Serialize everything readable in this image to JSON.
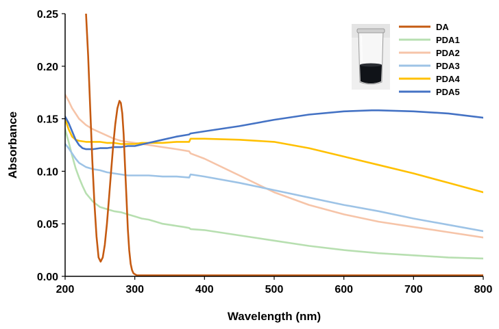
{
  "chart_data": {
    "type": "line",
    "title": "",
    "xlabel": "Wavelength (nm)",
    "ylabel": "Absorbance",
    "xlim": [
      200,
      800
    ],
    "ylim": [
      0,
      0.25
    ],
    "x_ticks": [
      200,
      300,
      400,
      500,
      600,
      700,
      800
    ],
    "x_tick_labels": [
      "200",
      "300",
      "400",
      "500",
      "600",
      "700",
      "800"
    ],
    "y_ticks": [
      0,
      0.05,
      0.1,
      0.15,
      0.2,
      0.25
    ],
    "y_tick_labels": [
      "0.00",
      "0.05",
      "0.10",
      "0.15",
      "0.20",
      "0.25"
    ],
    "grid": false,
    "legend_position": "top-right",
    "inset": "photo of a glass vial containing dark solution",
    "series": [
      {
        "name": "DA",
        "color": "#c55a11",
        "x": [
          230,
          233,
          236,
          239,
          242,
          245,
          248,
          251,
          254,
          257,
          260,
          263,
          266,
          269,
          272,
          275,
          278,
          280,
          282,
          284,
          286,
          288,
          290,
          292,
          294,
          296,
          298,
          300,
          303,
          306,
          310,
          320,
          350,
          400,
          500,
          600,
          700,
          800
        ],
        "values": [
          0.25,
          0.21,
          0.16,
          0.11,
          0.07,
          0.038,
          0.018,
          0.014,
          0.018,
          0.03,
          0.05,
          0.075,
          0.1,
          0.125,
          0.145,
          0.16,
          0.167,
          0.165,
          0.155,
          0.135,
          0.105,
          0.075,
          0.045,
          0.025,
          0.012,
          0.006,
          0.003,
          0.002,
          0.001,
          0.001,
          0.001,
          0.001,
          0.001,
          0.001,
          0.001,
          0.001,
          0.001,
          0.001
        ]
      },
      {
        "name": "PDA1",
        "color": "#b7dfb0",
        "x": [
          200,
          205,
          210,
          215,
          220,
          225,
          230,
          240,
          250,
          260,
          270,
          280,
          290,
          300,
          310,
          320,
          330,
          340,
          350,
          360,
          370,
          378,
          380,
          400,
          450,
          500,
          550,
          600,
          650,
          700,
          750,
          800
        ],
        "values": [
          0.14,
          0.128,
          0.115,
          0.103,
          0.094,
          0.086,
          0.079,
          0.071,
          0.066,
          0.064,
          0.062,
          0.061,
          0.059,
          0.057,
          0.055,
          0.054,
          0.052,
          0.05,
          0.049,
          0.048,
          0.047,
          0.046,
          0.045,
          0.044,
          0.039,
          0.034,
          0.029,
          0.025,
          0.022,
          0.02,
          0.018,
          0.017
        ]
      },
      {
        "name": "PDA2",
        "color": "#f6c4a8",
        "x": [
          200,
          205,
          210,
          220,
          230,
          240,
          250,
          260,
          270,
          280,
          290,
          300,
          320,
          340,
          360,
          378,
          380,
          400,
          450,
          500,
          550,
          600,
          650,
          700,
          750,
          800
        ],
        "values": [
          0.173,
          0.167,
          0.16,
          0.15,
          0.144,
          0.14,
          0.137,
          0.134,
          0.131,
          0.129,
          0.128,
          0.127,
          0.125,
          0.123,
          0.121,
          0.119,
          0.117,
          0.112,
          0.096,
          0.08,
          0.068,
          0.059,
          0.052,
          0.047,
          0.042,
          0.037
        ]
      },
      {
        "name": "PDA3",
        "color": "#9dc3e6",
        "x": [
          200,
          205,
          210,
          215,
          220,
          225,
          230,
          240,
          250,
          260,
          270,
          280,
          290,
          300,
          320,
          340,
          360,
          378,
          380,
          400,
          450,
          500,
          550,
          600,
          650,
          700,
          750,
          800
        ],
        "values": [
          0.126,
          0.122,
          0.117,
          0.112,
          0.108,
          0.106,
          0.104,
          0.102,
          0.101,
          0.099,
          0.098,
          0.097,
          0.096,
          0.096,
          0.096,
          0.095,
          0.095,
          0.094,
          0.097,
          0.095,
          0.089,
          0.082,
          0.075,
          0.068,
          0.062,
          0.055,
          0.049,
          0.043
        ]
      },
      {
        "name": "PDA4",
        "color": "#ffc000",
        "x": [
          200,
          205,
          210,
          215,
          220,
          230,
          240,
          250,
          260,
          270,
          280,
          290,
          300,
          310,
          320,
          340,
          360,
          378,
          380,
          400,
          450,
          500,
          550,
          600,
          650,
          700,
          750,
          800
        ],
        "values": [
          0.15,
          0.14,
          0.133,
          0.13,
          0.129,
          0.128,
          0.128,
          0.128,
          0.127,
          0.127,
          0.126,
          0.126,
          0.126,
          0.127,
          0.127,
          0.127,
          0.128,
          0.128,
          0.131,
          0.131,
          0.13,
          0.128,
          0.122,
          0.114,
          0.106,
          0.098,
          0.089,
          0.08
        ]
      },
      {
        "name": "PDA5",
        "color": "#4472c4",
        "x": [
          200,
          205,
          210,
          215,
          220,
          225,
          230,
          240,
          250,
          260,
          270,
          280,
          290,
          300,
          320,
          340,
          360,
          378,
          380,
          400,
          450,
          500,
          550,
          600,
          640,
          650,
          700,
          750,
          800
        ],
        "values": [
          0.152,
          0.146,
          0.138,
          0.13,
          0.125,
          0.122,
          0.121,
          0.121,
          0.122,
          0.122,
          0.123,
          0.123,
          0.124,
          0.124,
          0.127,
          0.13,
          0.133,
          0.135,
          0.136,
          0.138,
          0.143,
          0.149,
          0.154,
          0.157,
          0.158,
          0.158,
          0.157,
          0.155,
          0.151
        ]
      }
    ]
  }
}
